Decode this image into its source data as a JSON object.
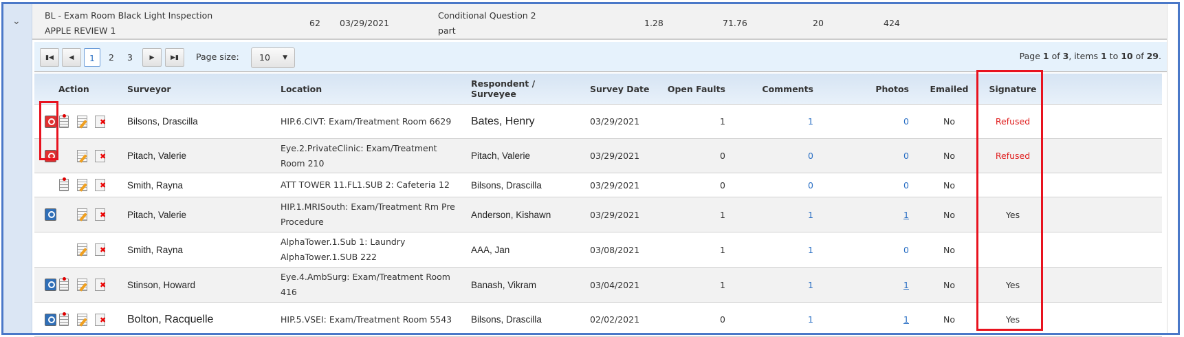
{
  "master_row": {
    "title": "BL - Exam Room Black Light Inspection",
    "subtitle": "APPLE REVIEW 1",
    "count": "62",
    "date": "03/29/2021",
    "question_line1": "Conditional Question 2",
    "question_line2": "part",
    "value1": "1.28",
    "value2": "71.76",
    "value3": "20",
    "value4": "424"
  },
  "pager": {
    "pages": [
      "1",
      "2",
      "3"
    ],
    "current": "1",
    "page_size_label": "Page size:",
    "page_size": "10",
    "info_prefix": "Page ",
    "info_page": "1",
    "info_of": " of ",
    "info_total_pages": "3",
    "info_items": ", items ",
    "info_from": "1",
    "info_to_word": " to ",
    "info_to": "10",
    "info_of2": " of ",
    "info_total": "29",
    "info_end": "."
  },
  "columns": [
    "Action",
    "Surveyor",
    "Location",
    "Respondent / Surveyee",
    "Survey Date",
    "Open Faults",
    "Comments",
    "Photos",
    "Emailed",
    "Signature"
  ],
  "rows": [
    {
      "photo_icon": "red",
      "report": true,
      "surveyor": "Bilsons, Drascilla",
      "location": "HIP.6.CIVT: Exam/Treatment Room 6629",
      "respondent": "Bates, Henry",
      "date": "03/29/2021",
      "open_faults": "1",
      "comments": "1",
      "photos": "0",
      "emailed": "No",
      "signature": "Refused"
    },
    {
      "photo_icon": "red",
      "report": false,
      "surveyor": "Pitach, Valerie",
      "location": "Eye.2.PrivateClinic: Exam/Treatment Room 210",
      "respondent": "Pitach, Valerie",
      "date": "03/29/2021",
      "open_faults": "0",
      "comments": "0",
      "photos": "0",
      "emailed": "No",
      "signature": "Refused"
    },
    {
      "photo_icon": "none",
      "report": true,
      "surveyor": "Smith, Rayna",
      "location": "ATT TOWER 11.FL1.SUB 2: Cafeteria 12",
      "respondent": "Bilsons, Drascilla",
      "date": "03/29/2021",
      "open_faults": "0",
      "comments": "0",
      "photos": "0",
      "emailed": "No",
      "signature": ""
    },
    {
      "photo_icon": "blue",
      "report": false,
      "surveyor": "Pitach, Valerie",
      "location": "HIP.1.MRISouth: Exam/Treatment Rm Pre Procedure",
      "respondent": "Anderson, Kishawn",
      "date": "03/29/2021",
      "open_faults": "1",
      "comments": "1",
      "photos": "1",
      "emailed": "No",
      "signature": "Yes"
    },
    {
      "photo_icon": "none",
      "report": false,
      "surveyor": "Smith, Rayna",
      "location": "AlphaTower.1.Sub 1: Laundry AlphaTower.1.SUB 222",
      "respondent": "AAA, Jan",
      "date": "03/08/2021",
      "open_faults": "1",
      "comments": "1",
      "photos": "0",
      "emailed": "No",
      "signature": ""
    },
    {
      "photo_icon": "blue",
      "report": true,
      "surveyor": "Stinson, Howard",
      "location": "Eye.4.AmbSurg: Exam/Treatment Room 416",
      "respondent": "Banash, Vikram",
      "date": "03/04/2021",
      "open_faults": "1",
      "comments": "1",
      "photos": "1",
      "emailed": "No",
      "signature": "Yes"
    },
    {
      "photo_icon": "blue",
      "report": true,
      "surveyor": "Bolton, Racquelle",
      "location": "HIP.5.VSEI: Exam/Treatment Room 5543",
      "respondent": "Bilsons, Drascilla",
      "date": "02/02/2021",
      "open_faults": "0",
      "comments": "1",
      "photos": "1",
      "emailed": "No",
      "signature": "Yes"
    }
  ],
  "colors": {
    "frame": "#4a78c8",
    "highlight": "#e8121e",
    "link": "#2a6fc4",
    "refused": "#e02020"
  }
}
